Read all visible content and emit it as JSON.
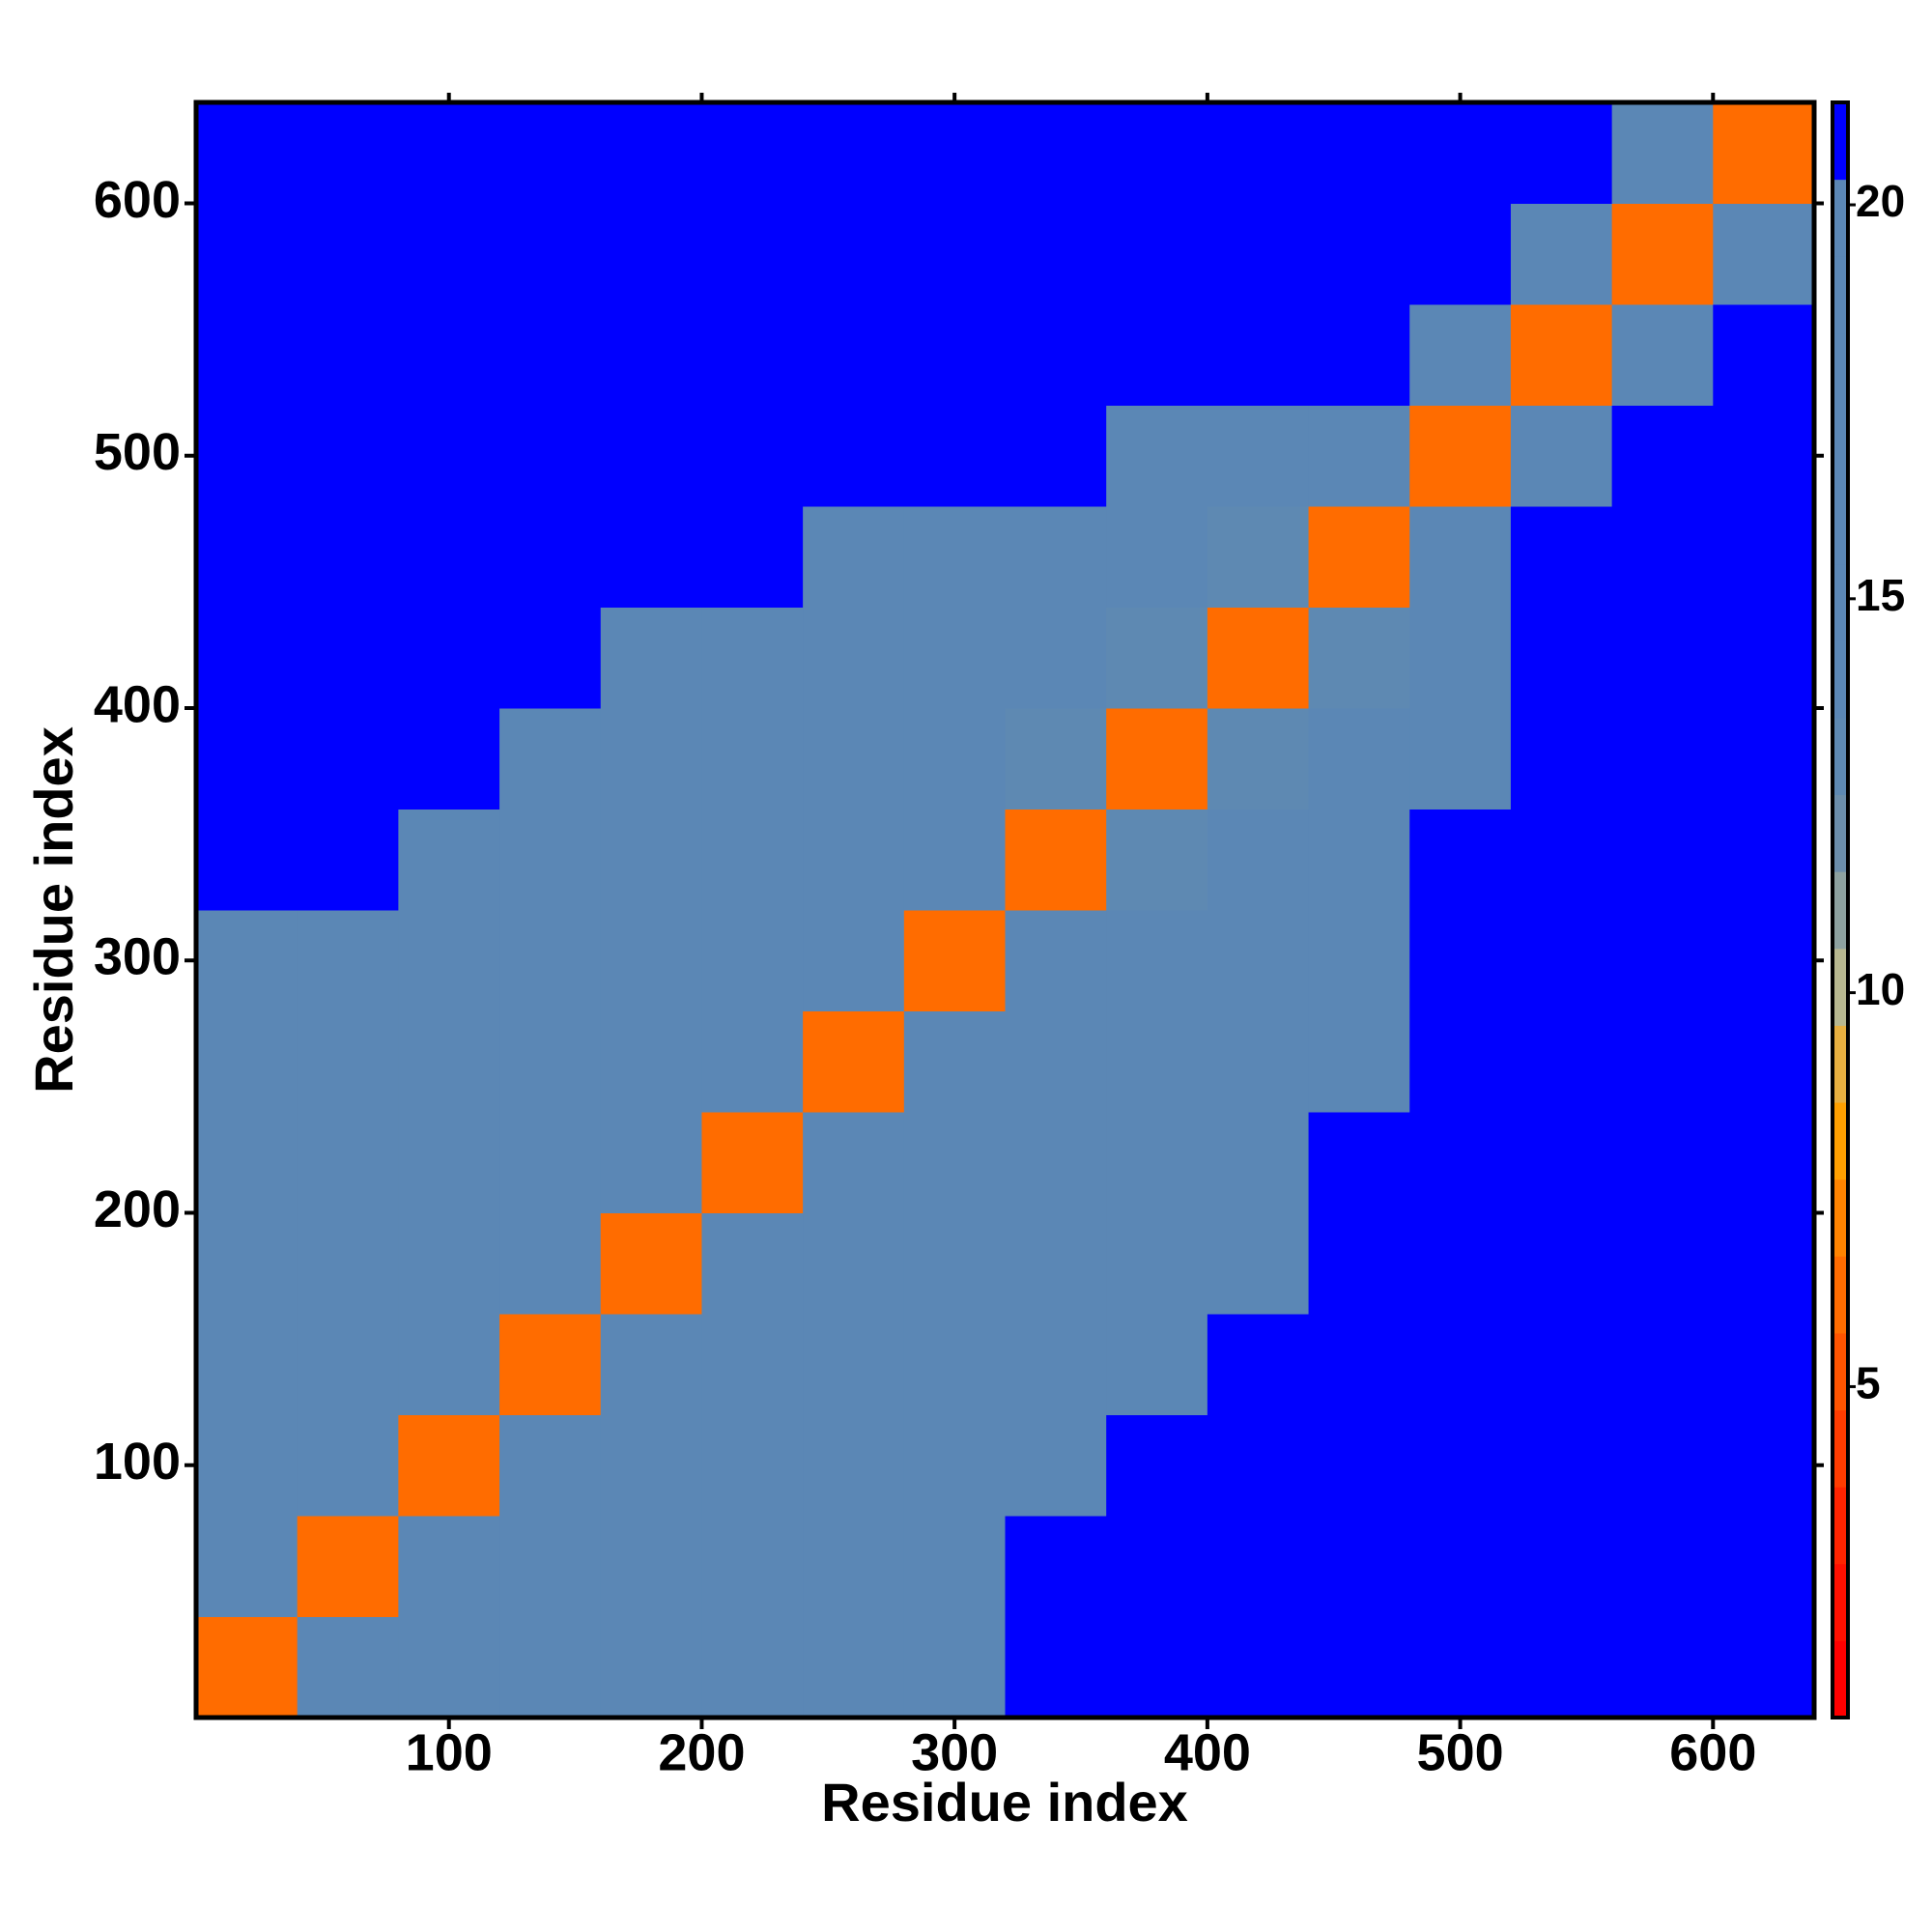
{
  "chart_data": {
    "type": "heatmap",
    "xlabel": "Residue index",
    "ylabel": "Residue index",
    "x": [
      20,
      60,
      100,
      140,
      180,
      220,
      260,
      300,
      340,
      380,
      420,
      460,
      500,
      540,
      580,
      620
    ],
    "y": [
      20,
      60,
      100,
      140,
      180,
      220,
      260,
      300,
      340,
      380,
      420,
      460,
      500,
      540,
      580,
      620
    ],
    "z": [
      [
        6,
        14,
        15,
        16,
        17,
        17,
        17,
        18,
        21,
        21,
        21,
        21,
        21,
        21,
        21,
        21
      ],
      [
        14,
        6,
        14,
        15,
        16,
        17,
        17,
        18,
        21,
        21,
        21,
        21,
        21,
        21,
        21,
        21
      ],
      [
        15,
        14,
        6,
        14,
        15,
        16,
        17,
        18,
        20,
        21,
        21,
        21,
        21,
        21,
        21,
        21
      ],
      [
        16,
        15,
        14,
        6,
        14,
        15,
        16,
        17,
        20,
        20,
        21,
        21,
        21,
        21,
        21,
        21
      ],
      [
        17,
        16,
        15,
        14,
        6,
        14,
        15,
        17,
        19,
        20,
        20,
        21,
        21,
        21,
        21,
        21
      ],
      [
        17,
        17,
        16,
        15,
        14,
        6,
        14,
        16,
        18,
        19,
        20,
        21,
        21,
        21,
        21,
        21
      ],
      [
        17,
        17,
        17,
        16,
        15,
        14,
        6,
        14,
        16,
        18,
        19,
        20,
        21,
        21,
        21,
        21
      ],
      [
        18,
        18,
        18,
        17,
        17,
        16,
        14,
        6,
        14,
        16,
        17,
        18,
        21,
        21,
        21,
        21
      ],
      [
        21,
        21,
        20,
        20,
        19,
        18,
        16,
        14,
        6,
        13,
        15,
        17,
        21,
        21,
        21,
        21
      ],
      [
        21,
        21,
        21,
        20,
        20,
        19,
        18,
        16,
        13,
        6,
        13,
        15,
        20,
        21,
        21,
        21
      ],
      [
        21,
        21,
        21,
        21,
        20,
        20,
        19,
        17,
        15,
        13,
        6,
        13,
        19,
        21,
        21,
        21
      ],
      [
        21,
        21,
        21,
        21,
        21,
        21,
        20,
        18,
        17,
        15,
        13,
        6,
        14,
        21,
        21,
        21
      ],
      [
        21,
        21,
        21,
        21,
        21,
        21,
        21,
        21,
        21,
        20,
        19,
        14,
        6,
        14,
        21,
        21
      ],
      [
        21,
        21,
        21,
        21,
        21,
        21,
        21,
        21,
        21,
        21,
        21,
        21,
        14,
        6,
        14,
        21
      ],
      [
        21,
        21,
        21,
        21,
        21,
        21,
        21,
        21,
        21,
        21,
        21,
        21,
        21,
        14,
        6,
        14
      ],
      [
        21,
        21,
        21,
        21,
        21,
        21,
        21,
        21,
        21,
        21,
        21,
        21,
        21,
        21,
        14,
        6
      ]
    ],
    "xlim": [
      0,
      640
    ],
    "ylim": [
      0,
      640
    ],
    "xticks": [
      100,
      200,
      300,
      400,
      500,
      600
    ],
    "yticks": [
      100,
      200,
      300,
      400,
      500,
      600
    ],
    "zlim": [
      0.8,
      21.3
    ],
    "zticks": [
      5,
      10,
      15,
      20
    ],
    "colors": [
      "#ff0000",
      "#ff1000",
      "#ff2400",
      "#ff3c00",
      "#ff5400",
      "#ff6c00",
      "#ff8400",
      "#ffa000",
      "#e8b040",
      "#b8b890",
      "#8ea2a0",
      "#6c8eaa",
      "#5e89b2",
      "#5b87b5",
      "#5b87b5",
      "#5b87b5",
      "#5b87b5",
      "#5b87b5",
      "#5b87b5",
      "#5b87b5",
      "#0000ff"
    ]
  }
}
